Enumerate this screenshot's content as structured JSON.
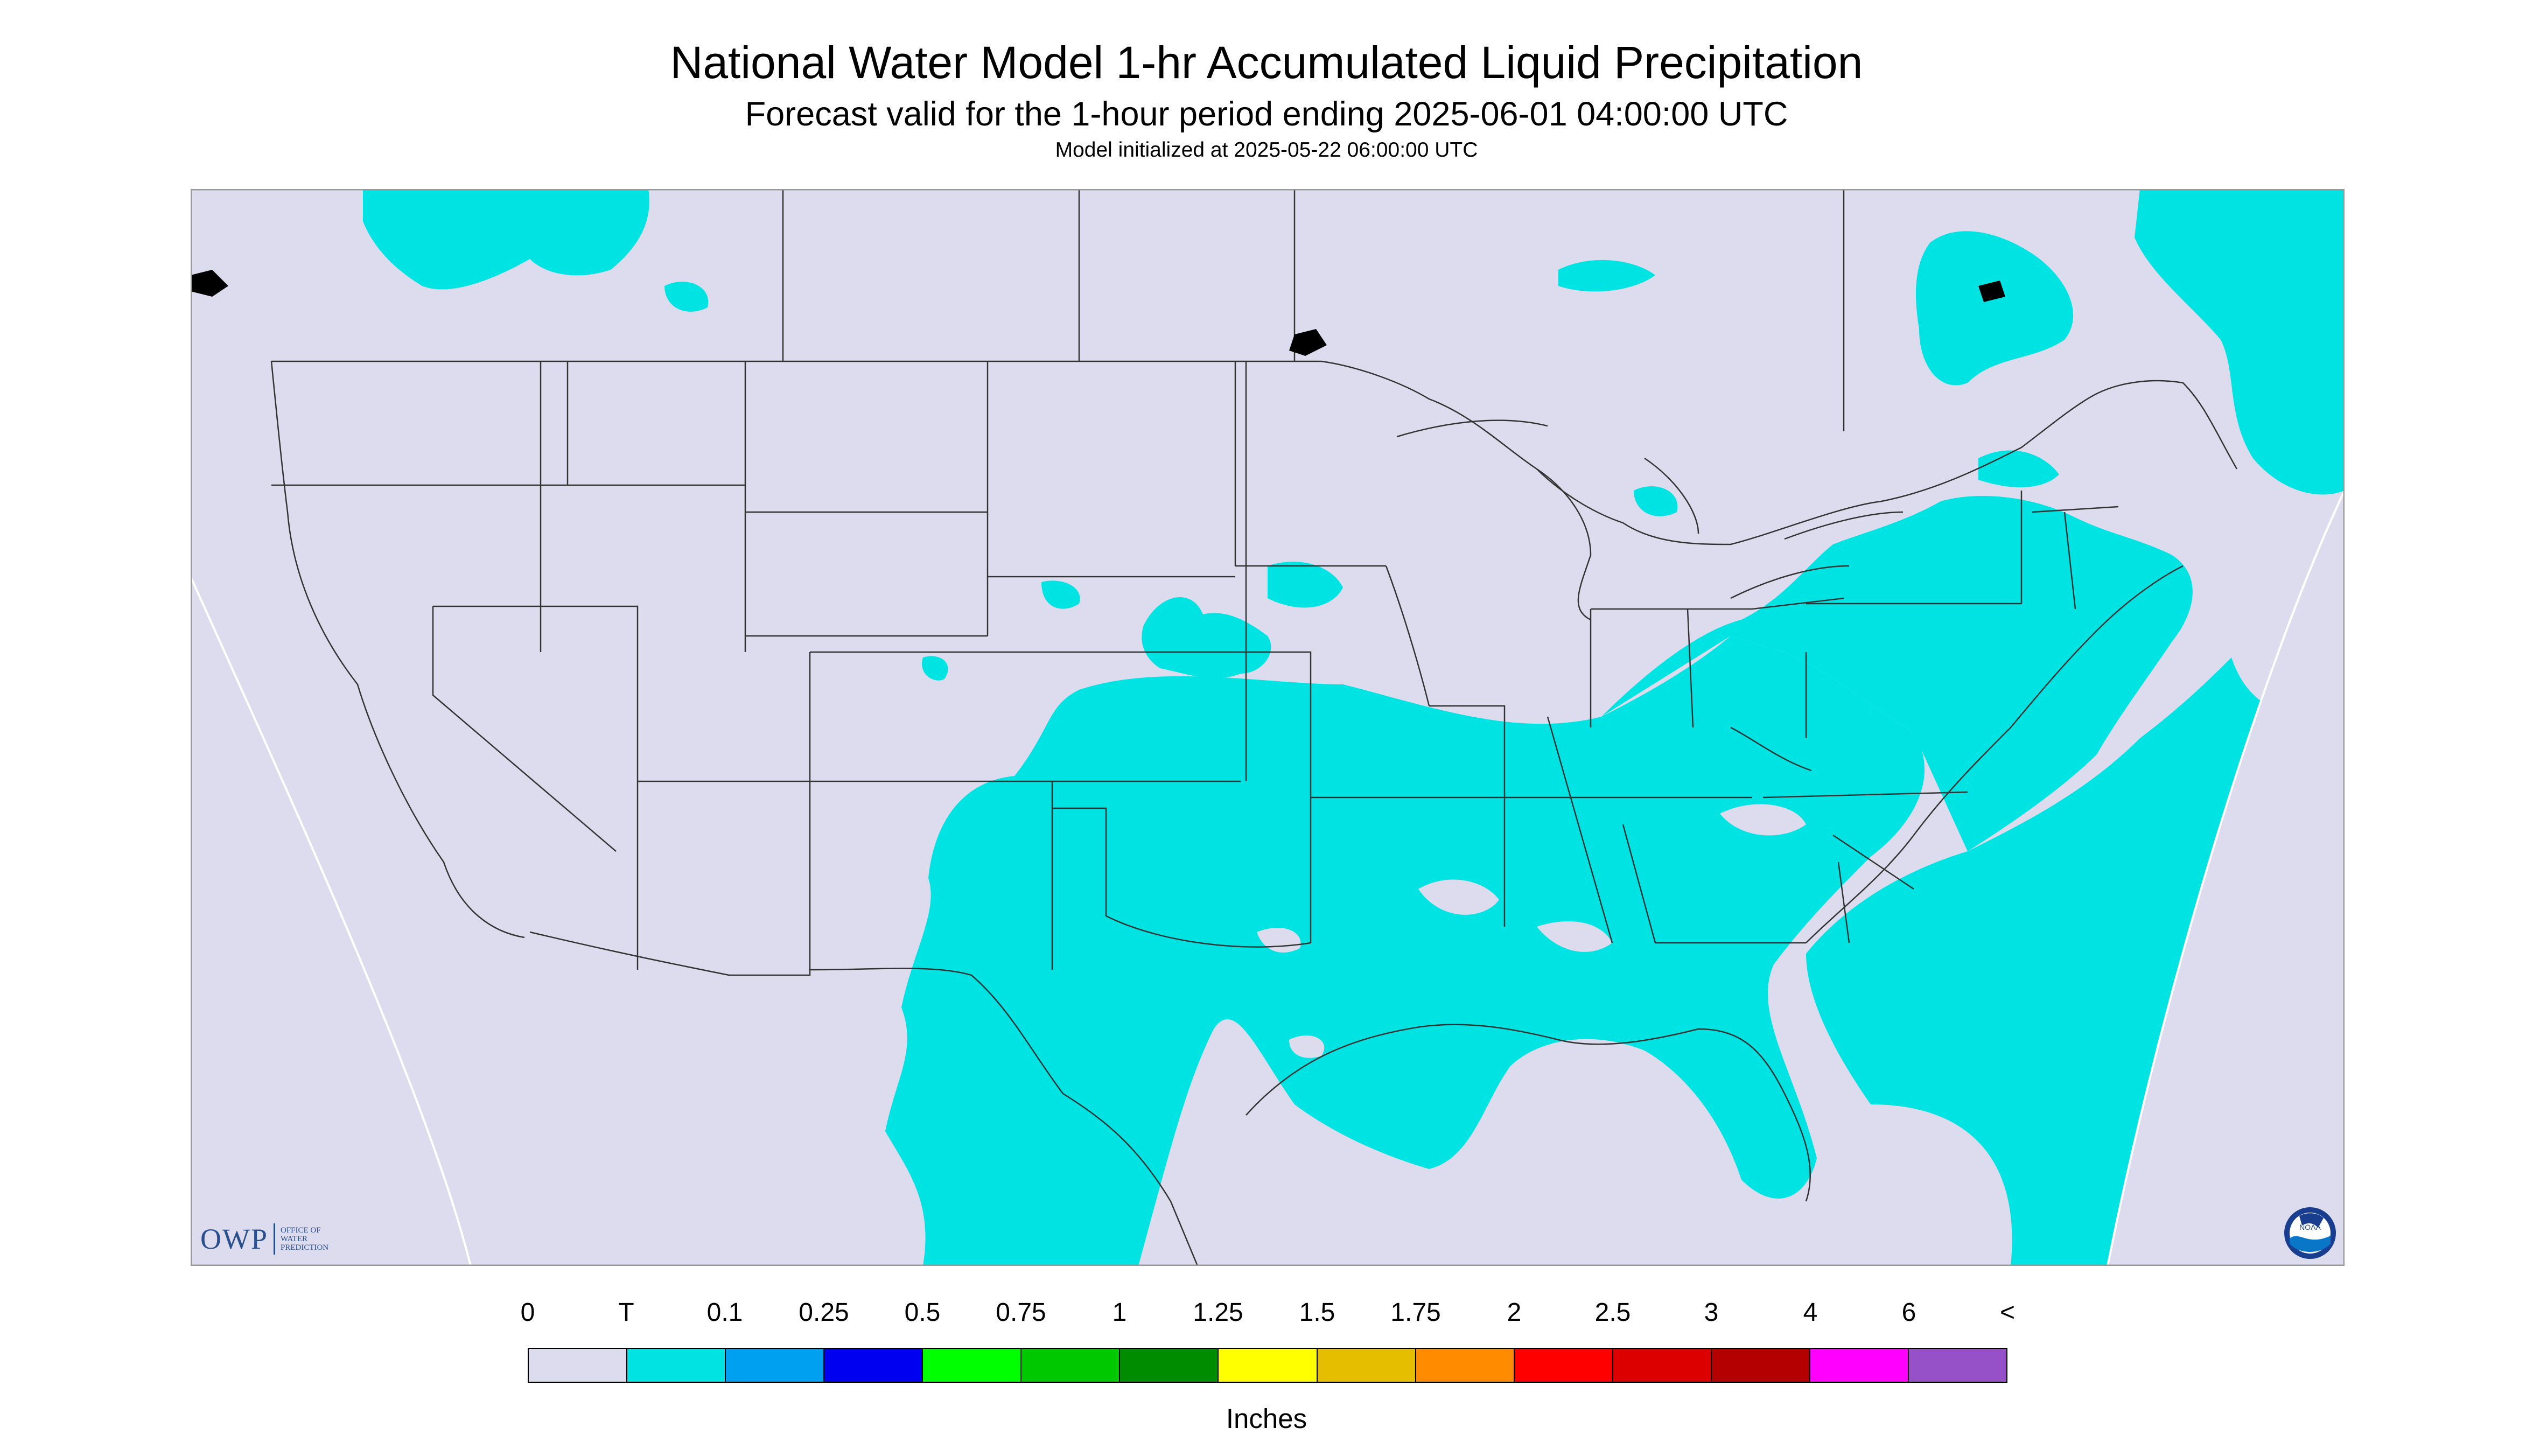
{
  "header": {
    "title": "National Water Model 1-hr Accumulated Liquid Precipitation",
    "subtitle": "Forecast valid for the 1-hour period ending 2025-06-01 04:00:00 UTC",
    "init": "Model initialized at 2025-05-22 06:00:00 UTC"
  },
  "colors": {
    "no_data_background": "#dcdcee",
    "trace": "#00e3e3",
    "land_outline": "#222222",
    "border": "#555555"
  },
  "logos": {
    "owp_main": "OWP",
    "owp_sub": [
      "OFFICE OF",
      "WATER",
      "PREDICTION"
    ],
    "noaa": "NOAA"
  },
  "legend": {
    "labels": [
      "0",
      "T",
      "0.1",
      "0.25",
      "0.5",
      "0.75",
      "1",
      "1.25",
      "1.5",
      "1.75",
      "2",
      "2.5",
      "3",
      "4",
      "6",
      "<"
    ],
    "colors": [
      "#dcdcee",
      "#00e3e3",
      "#00a0f0",
      "#0000f0",
      "#00ff00",
      "#00c800",
      "#008c00",
      "#ffff00",
      "#e6be00",
      "#ff8c00",
      "#ff0000",
      "#dc0000",
      "#b40000",
      "#ff00ff",
      "#9650c8"
    ],
    "units": "Inches"
  }
}
